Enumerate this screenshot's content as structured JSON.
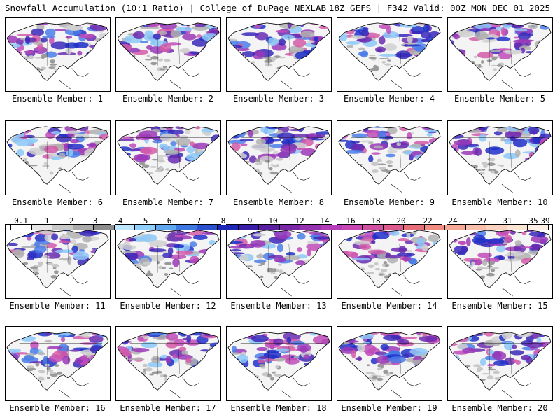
{
  "header": {
    "left": "Snowfall Accumulation (10:1 Ratio) | College of DuPage NEXLAB",
    "right": "18Z GEFS | F342 Valid: 00Z MON DEC 01 2025"
  },
  "members": [
    {
      "label": "Ensemble Member: 1"
    },
    {
      "label": "Ensemble Member: 2"
    },
    {
      "label": "Ensemble Member: 3"
    },
    {
      "label": "Ensemble Member: 4"
    },
    {
      "label": "Ensemble Member: 5"
    },
    {
      "label": "Ensemble Member: 6"
    },
    {
      "label": "Ensemble Member: 7"
    },
    {
      "label": "Ensemble Member: 8"
    },
    {
      "label": "Ensemble Member: 9"
    },
    {
      "label": "Ensemble Member: 10"
    },
    {
      "label": "Ensemble Member: 11"
    },
    {
      "label": "Ensemble Member: 12"
    },
    {
      "label": "Ensemble Member: 13"
    },
    {
      "label": "Ensemble Member: 14"
    },
    {
      "label": "Ensemble Member: 15"
    },
    {
      "label": "Ensemble Member: 16"
    },
    {
      "label": "Ensemble Member: 17"
    },
    {
      "label": "Ensemble Member: 18"
    },
    {
      "label": "Ensemble Member: 19"
    },
    {
      "label": "Ensemble Member: 20"
    }
  ],
  "colorbar": {
    "labels": [
      "0.1",
      "1",
      "2",
      "3",
      "4",
      "5",
      "6",
      "7",
      "8",
      "9",
      "10",
      "12",
      "14",
      "16",
      "18",
      "20",
      "22",
      "24",
      "27",
      "31",
      "35",
      "39"
    ],
    "colors": [
      "#ffffff",
      "#e6e6e6",
      "#c8c8c8",
      "#aaaaaa",
      "#8c8c8c",
      "#bfe6ff",
      "#8fd0ff",
      "#5fa8f0",
      "#3c78e0",
      "#2850d0",
      "#1e28b8",
      "#3a1ea8",
      "#5a1ea0",
      "#7a28a8",
      "#9632b0",
      "#b43cb8",
      "#c846b4",
      "#d250a0",
      "#dc5a8c",
      "#e66e78",
      "#f08c82",
      "#f5a896",
      "#f8c0aa",
      "#fad2be",
      "#fce4d2",
      "#fff0e6"
    ]
  }
}
